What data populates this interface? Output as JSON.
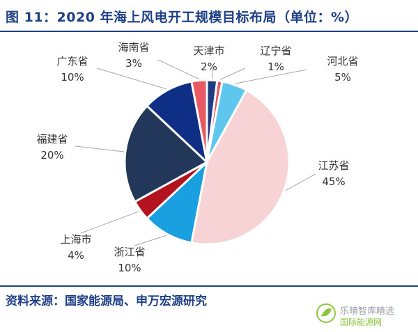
{
  "title": "图 11：2020 年海上风电开工规模目标布局（单位：%）",
  "source": "资料来源：国家能源局、申万宏源研究",
  "watermark": {
    "text": "乐晴智库精选",
    "sub": "国际能源网"
  },
  "chart_data": {
    "type": "pie",
    "title": "图 11：2020 年海上风电开工规模目标布局（单位：%）",
    "slices": [
      {
        "name": "天津市",
        "pct_label": "2%",
        "value": 2,
        "color": "#1f3b82"
      },
      {
        "name": "辽宁省",
        "pct_label": "1%",
        "value": 1,
        "color": "#e05a63"
      },
      {
        "name": "河北省",
        "pct_label": "5%",
        "value": 5,
        "color": "#5fc7ee"
      },
      {
        "name": "江苏省",
        "pct_label": "45%",
        "value": 45,
        "color": "#f7d3d6"
      },
      {
        "name": "浙江省",
        "pct_label": "10%",
        "value": 10,
        "color": "#1a9fe0"
      },
      {
        "name": "上海市",
        "pct_label": "4%",
        "value": 4,
        "color": "#b3121f"
      },
      {
        "name": "福建省",
        "pct_label": "20%",
        "value": 20,
        "color": "#22375a"
      },
      {
        "name": "广东省",
        "pct_label": "10%",
        "value": 10,
        "color": "#0f2f86"
      },
      {
        "name": "海南省",
        "pct_label": "3%",
        "value": 3,
        "color": "#e85a63"
      }
    ]
  }
}
